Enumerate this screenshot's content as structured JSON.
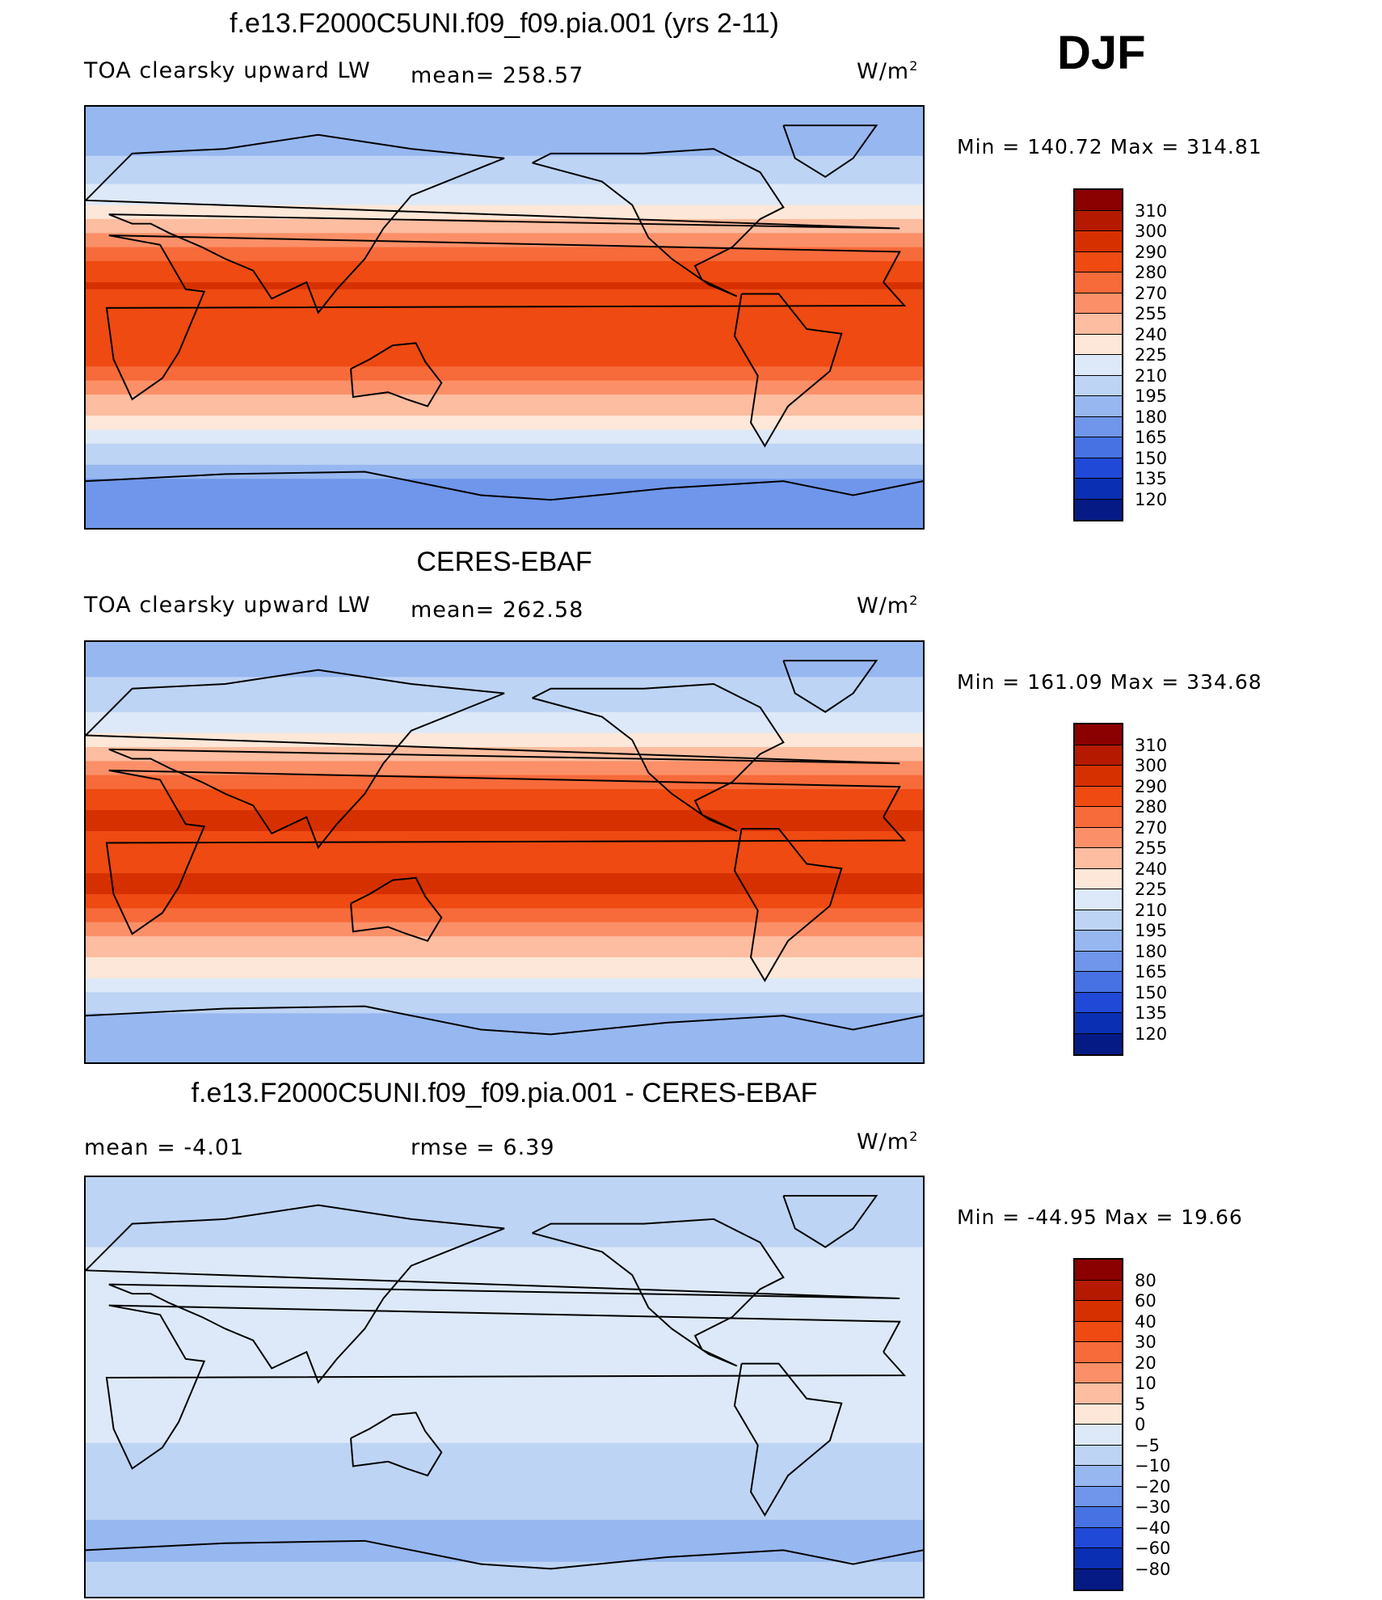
{
  "season": "DJF",
  "units_base": "W/m",
  "units_exp": "2",
  "panels": [
    {
      "title": "f.e13.F2000C5UNI.f09_f09.pia.001 (yrs 2-11)",
      "left_label": "TOA clearsky upward LW",
      "center_label": "mean= 258.57",
      "minmax": "Min = 140.72 Max = 314.81",
      "colorbar": [
        "310",
        "300",
        "290",
        "280",
        "270",
        "255",
        "240",
        "225",
        "210",
        "195",
        "180",
        "165",
        "150",
        "135",
        "120"
      ]
    },
    {
      "title": "CERES-EBAF",
      "left_label": "TOA clearsky upward LW",
      "center_label": "mean= 262.58",
      "minmax": "Min = 161.09 Max = 334.68",
      "colorbar": [
        "310",
        "300",
        "290",
        "280",
        "270",
        "255",
        "240",
        "225",
        "210",
        "195",
        "180",
        "165",
        "150",
        "135",
        "120"
      ]
    },
    {
      "title": "f.e13.F2000C5UNI.f09_f09.pia.001 - CERES-EBAF",
      "left_label": "mean = -4.01",
      "center_label": "rmse = 6.39",
      "minmax": "Min = -44.95 Max = 19.66",
      "colorbar": [
        "80",
        "60",
        "40",
        "30",
        "20",
        "10",
        "5",
        "0",
        "-5",
        "-10",
        "-20",
        "-30",
        "-40",
        "-60",
        "-80"
      ]
    }
  ],
  "colors": {
    "abs_scale": [
      "#8b0000",
      "#b51a00",
      "#d73000",
      "#ee4a12",
      "#f76a3a",
      "#fb9068",
      "#fcbda0",
      "#fde7d8",
      "#dde9f8",
      "#bdd4f4",
      "#97b7f0",
      "#6f96ea",
      "#4672e3",
      "#2149d8",
      "#0a2fb2",
      "#061a86"
    ],
    "diff_scale": [
      "#8b0000",
      "#b51a00",
      "#d73000",
      "#ee4a12",
      "#f76a3a",
      "#fb9068",
      "#fcbda0",
      "#fde7d8",
      "#dde9f8",
      "#bdd4f4",
      "#97b7f0",
      "#6f96ea",
      "#4672e3",
      "#2149d8",
      "#0a2fb2",
      "#061a86"
    ],
    "coastline": "#000000"
  },
  "chart_data": [
    {
      "type": "heatmap",
      "title": "f.e13.F2000C5UNI.f09_f09.pia.001 (yrs 2-11)",
      "variable": "TOA clearsky upward LW",
      "units": "W/m2",
      "mean": 258.57,
      "min": 140.72,
      "max": 314.81,
      "levels": [
        120,
        135,
        150,
        165,
        180,
        195,
        210,
        225,
        240,
        255,
        270,
        280,
        290,
        300,
        310
      ],
      "zonal_profile_by_latitude": {
        "latitude": [
          80,
          60,
          45,
          30,
          15,
          0,
          -15,
          -30,
          -45,
          -60,
          -75
        ],
        "value": [
          185,
          205,
          232,
          270,
          292,
          280,
          290,
          262,
          232,
          200,
          170
        ]
      }
    },
    {
      "type": "heatmap",
      "title": "CERES-EBAF",
      "variable": "TOA clearsky upward LW",
      "units": "W/m2",
      "mean": 262.58,
      "min": 161.09,
      "max": 334.68,
      "levels": [
        120,
        135,
        150,
        165,
        180,
        195,
        210,
        225,
        240,
        255,
        270,
        280,
        290,
        300,
        310
      ],
      "zonal_profile_by_latitude": {
        "latitude": [
          80,
          60,
          45,
          30,
          15,
          0,
          -15,
          -30,
          -45,
          -60,
          -75
        ],
        "value": [
          190,
          210,
          238,
          275,
          295,
          284,
          293,
          268,
          238,
          212,
          180
        ]
      }
    },
    {
      "type": "heatmap",
      "title": "f.e13.F2000C5UNI.f09_f09.pia.001 - CERES-EBAF",
      "units": "W/m2",
      "mean": -4.01,
      "rmse": 6.39,
      "min": -44.95,
      "max": 19.66,
      "levels": [
        -80,
        -60,
        -40,
        -30,
        -20,
        -10,
        -5,
        0,
        5,
        10,
        20,
        30,
        40,
        60,
        80
      ],
      "zonal_profile_by_latitude": {
        "latitude": [
          80,
          60,
          45,
          30,
          15,
          0,
          -15,
          -30,
          -45,
          -60,
          -75
        ],
        "value": [
          -8,
          -5,
          -3,
          -4,
          -3,
          -4,
          -3,
          -6,
          -5,
          -12,
          -10
        ]
      }
    }
  ]
}
